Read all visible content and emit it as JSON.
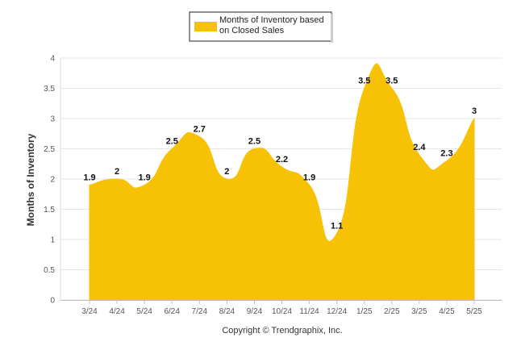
{
  "chart_data": {
    "type": "area",
    "categories": [
      "3/24",
      "4/24",
      "5/24",
      "6/24",
      "7/24",
      "8/24",
      "9/24",
      "10/24",
      "11/24",
      "12/24",
      "1/25",
      "2/25",
      "3/25",
      "4/25",
      "5/25"
    ],
    "series": [
      {
        "name": "Months of Inventory based on Closed Sales",
        "values": [
          1.9,
          2,
          1.9,
          2.5,
          2.7,
          2,
          2.5,
          2.2,
          1.9,
          1.1,
          3.5,
          3.5,
          2.4,
          2.3,
          3
        ],
        "color": "#F7C205"
      }
    ],
    "data_labels": [
      "1.9",
      "2",
      "1.9",
      "2.5",
      "2.7",
      "2",
      "2.5",
      "2.2",
      "1.9",
      "1.1",
      "3.5",
      "3.5",
      "2.4",
      "2.3",
      "3"
    ],
    "ylabel": "Months of Inventory",
    "xlabel": "",
    "ylim": [
      0,
      4
    ],
    "yticks": [
      "0",
      "0.5",
      "1",
      "1.5",
      "2",
      "2.5",
      "3",
      "3.5",
      "4"
    ],
    "grid": true,
    "legend_position": "top-center",
    "legend_label_lines": [
      "Months of Inventory based",
      "on Closed Sales"
    ]
  },
  "credit": "Copyright © Trendgraphix, Inc."
}
